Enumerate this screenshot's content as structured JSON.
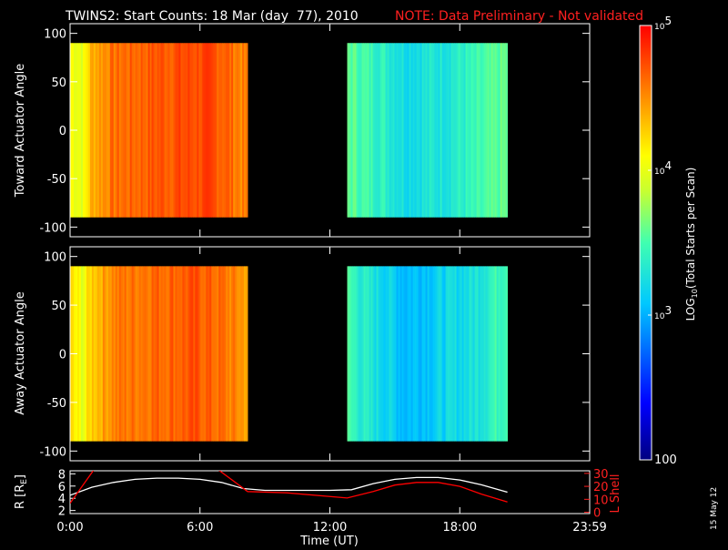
{
  "header": {
    "title": "TWINS2: Start Counts: 18 Mar (day  77), 2010",
    "note": "NOTE: Data Preliminary - Not validated",
    "note_color": "#ff2020"
  },
  "side_stamp": "15 May 12",
  "chart_data": [
    {
      "type": "heatmap",
      "ylabel": "Toward Actuator Angle",
      "ylim": [
        -110,
        110
      ],
      "yticks": [
        "100",
        "50",
        "0",
        "-50",
        "-100"
      ],
      "ytick_values": [
        100,
        50,
        0,
        -50,
        -100
      ],
      "data_x_ranges_hours": [
        [
          0,
          8.2
        ],
        [
          12.8,
          20.2
        ]
      ],
      "data_y_range": [
        -90,
        90
      ],
      "log10_counts_profile": [
        {
          "x": [
            0.0,
            0.6,
            1.0,
            2.0,
            4.0,
            6.0,
            7.0,
            8.2
          ],
          "v": [
            4.1,
            4.0,
            4.4,
            4.6,
            4.7,
            4.75,
            4.7,
            4.5
          ]
        },
        {
          "x": [
            12.8,
            13.5,
            14.5,
            15.5,
            17.0,
            18.5,
            20.2
          ],
          "v": [
            3.6,
            3.5,
            3.4,
            3.25,
            3.3,
            3.4,
            3.6
          ]
        }
      ]
    },
    {
      "type": "heatmap",
      "ylabel": "Away Actuator Angle",
      "ylim": [
        -110,
        110
      ],
      "yticks": [
        "100",
        "50",
        "0",
        "-50",
        "-100"
      ],
      "ytick_values": [
        100,
        50,
        0,
        -50,
        -100
      ],
      "data_x_ranges_hours": [
        [
          0,
          8.2
        ],
        [
          12.8,
          20.2
        ]
      ],
      "data_y_range": [
        -90,
        90
      ],
      "log10_counts_profile": [
        {
          "x": [
            0.0,
            0.6,
            1.0,
            2.0,
            4.0,
            6.0,
            7.0,
            8.2
          ],
          "v": [
            4.2,
            4.0,
            4.3,
            4.55,
            4.65,
            4.7,
            4.6,
            4.45
          ]
        },
        {
          "x": [
            12.8,
            13.5,
            14.5,
            15.5,
            17.0,
            18.5,
            20.2
          ],
          "v": [
            3.5,
            3.35,
            3.2,
            3.05,
            3.15,
            3.25,
            3.55
          ]
        }
      ]
    },
    {
      "type": "line",
      "xlabel": "Time (UT)",
      "xticks": [
        "0:00",
        "6:00",
        "12:00",
        "18:00",
        "23:59"
      ],
      "xtick_values": [
        0,
        6,
        12,
        18,
        24
      ],
      "xlim": [
        0,
        24
      ],
      "ylabel_left": "R [R",
      "ylabel_left_sub": "E",
      "ylabel_left_close": "]",
      "yticks_left": [
        "8",
        "6",
        "4",
        "2"
      ],
      "ytick_left_values": [
        8,
        6,
        4,
        2
      ],
      "ylim_left": [
        1.5,
        8.5
      ],
      "ylabel_right": "L Shell",
      "yticks_right": [
        "30",
        "20",
        "10",
        "0"
      ],
      "ytick_right_values": [
        30,
        20,
        10,
        0
      ],
      "ylim_right": [
        -1,
        32
      ],
      "series": [
        {
          "color": "#ffffff",
          "axis": "left",
          "x": [
            0,
            1,
            2,
            3,
            4,
            5,
            6,
            7,
            8,
            9,
            10,
            11,
            12,
            13,
            14,
            15,
            16,
            17,
            18,
            19,
            20.2
          ],
          "y": [
            4.5,
            5.8,
            6.6,
            7.1,
            7.3,
            7.3,
            7.1,
            6.6,
            5.6,
            5.3,
            5.3,
            5.3,
            5.3,
            5.4,
            6.4,
            7.1,
            7.4,
            7.4,
            7.0,
            6.2,
            5.0
          ]
        },
        {
          "color": "#ff0000",
          "axis": "right",
          "x": [
            0,
            1.15,
            null,
            6.75,
            8.2,
            10,
            12.8,
            14,
            15,
            16,
            17,
            18,
            19,
            20.2
          ],
          "y": [
            7,
            34,
            null,
            34,
            16,
            15,
            11,
            16,
            21,
            23,
            23,
            20,
            14,
            8
          ]
        }
      ]
    }
  ],
  "colorbar": {
    "label": "LOG",
    "label_sub": "10",
    "label_rest": "(Total Starts per Scan)",
    "ticks": [
      {
        "base": "10",
        "exp": "5",
        "value": 5
      },
      {
        "base": "10",
        "exp": "4",
        "value": 4
      },
      {
        "base": "10",
        "exp": "3",
        "value": 3
      },
      {
        "base": "100",
        "exp": "",
        "value": 2
      }
    ],
    "range": [
      2,
      5
    ]
  }
}
